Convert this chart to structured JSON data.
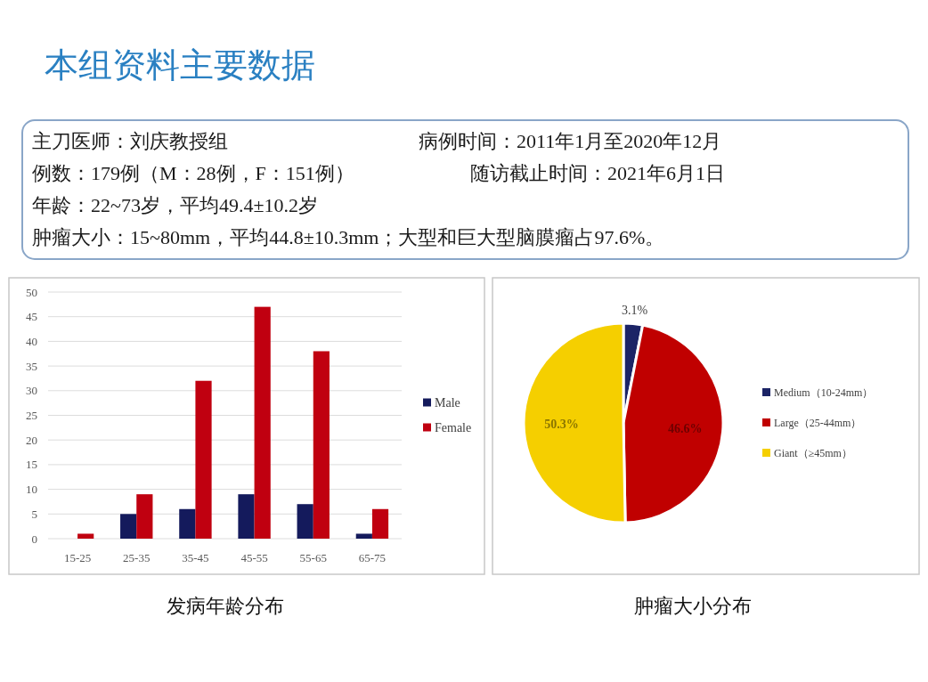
{
  "chart_data": [
    {
      "type": "other",
      "title": "本组资料主要数据",
      "annotations": [
        "主刀医师：刘庆教授组",
        "病例时间：2011年1月至2020年12月",
        "例数：179例（M：28例，F：151例）",
        "随访截止时间：2021年6月1日",
        "年龄：22~73岁，平均49.4±10.2岁",
        "肿瘤大小：15~80mm，平均44.8±10.3mm；大型和巨大型脑膜瘤占97.6%。"
      ]
    },
    {
      "type": "bar",
      "title": "发病年龄分布",
      "categories": [
        "15-25",
        "25-35",
        "35-45",
        "45-55",
        "55-65",
        "65-75"
      ],
      "series": [
        {
          "name": "Male",
          "color": "#141a5c",
          "values": [
            0,
            5,
            6,
            9,
            7,
            1
          ]
        },
        {
          "name": "Female",
          "color": "#c00010",
          "values": [
            1,
            9,
            32,
            47,
            38,
            6
          ]
        }
      ],
      "ylim": [
        0,
        50
      ],
      "yticks": [
        0,
        5,
        10,
        15,
        20,
        25,
        30,
        35,
        40,
        45,
        50
      ],
      "grid": "y",
      "legend": "right"
    },
    {
      "type": "pie",
      "title": "肿瘤大小分布",
      "categories": [
        "Medium（10-24mm）",
        "Large（25-44mm）",
        "Giant（≥45mm）"
      ],
      "values": [
        3.1,
        46.6,
        50.3
      ],
      "colors": [
        "#1c2466",
        "#c00000",
        "#f5cf00"
      ],
      "value_labels": [
        "3.1%",
        "46.6%",
        "50.3%"
      ],
      "legend": "right"
    }
  ]
}
